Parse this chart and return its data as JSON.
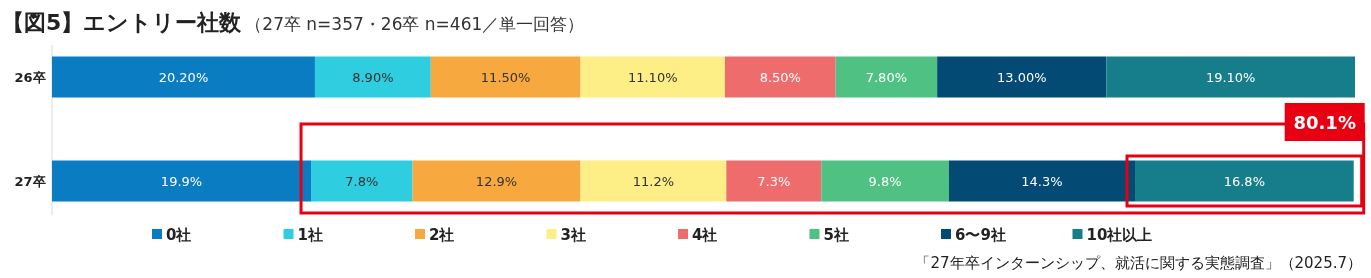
{
  "chart_data": {
    "type": "bar",
    "orientation": "horizontal",
    "stacked": true,
    "title": "【図5】エントリー社数",
    "subtitle": "（27卒 n=357・26卒 n=461／単一回答）",
    "categories": [
      "26卒",
      "27卒"
    ],
    "xlim": [
      0,
      100.1
    ],
    "legend": "bottom",
    "series": [
      {
        "name": "0社",
        "color": "#0a7dc2",
        "values": [
          20.2,
          19.9
        ],
        "value_labels": [
          "20.20%",
          "19.9%"
        ]
      },
      {
        "name": "1社",
        "color": "#2ecde0",
        "values": [
          8.9,
          7.8
        ],
        "value_labels": [
          "8.90%",
          "7.8%"
        ]
      },
      {
        "name": "2社",
        "color": "#f7a940",
        "values": [
          11.5,
          12.9
        ],
        "value_labels": [
          "11.50%",
          "12.9%"
        ]
      },
      {
        "name": "3社",
        "color": "#fdee86",
        "values": [
          11.1,
          11.2
        ],
        "value_labels": [
          "11.10%",
          "11.2%"
        ]
      },
      {
        "name": "4社",
        "color": "#ee6c6c",
        "values": [
          8.5,
          7.3
        ],
        "value_labels": [
          "8.50%",
          "7.3%"
        ]
      },
      {
        "name": "5社",
        "color": "#4ec183",
        "values": [
          7.8,
          9.8
        ],
        "value_labels": [
          "7.80%",
          "9.8%"
        ]
      },
      {
        "name": "6〜9社",
        "color": "#034a74",
        "values": [
          13.0,
          14.3
        ],
        "value_labels": [
          "13.00%",
          "14.3%"
        ]
      },
      {
        "name": "10社以上",
        "color": "#167e8b",
        "values": [
          19.1,
          16.8
        ],
        "value_labels": [
          "19.10%",
          "16.8%"
        ]
      }
    ],
    "annotations": [
      "80.1%",
      "「27年卒インターンシップ、就活に関する実態調査」（2025.7）"
    ]
  }
}
